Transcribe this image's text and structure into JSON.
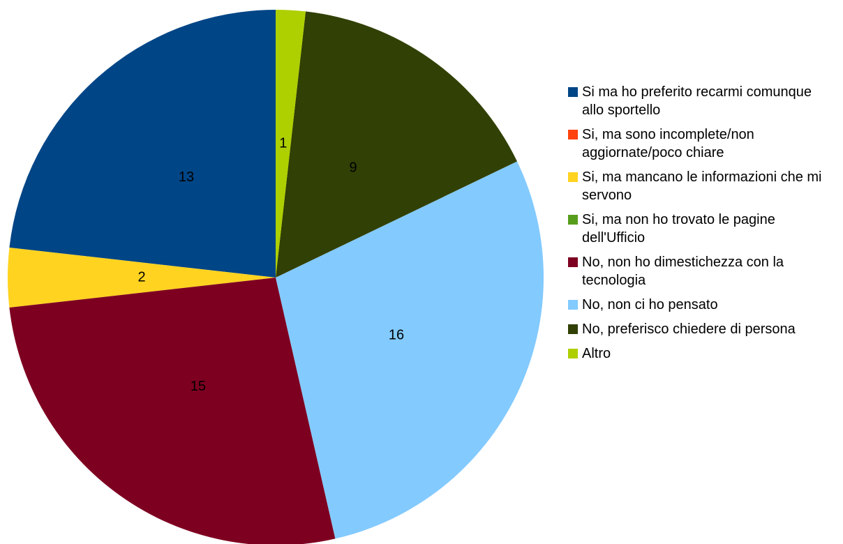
{
  "chart_data": {
    "type": "pie",
    "categories": [
      "Si ma ho preferito recarmi comunque allo sportello",
      "Si, ma sono incomplete/non aggiornate/poco chiare",
      "Si, ma mancano le informazioni che mi servono",
      "Si, ma non ho trovato le pagine dell'Ufficio",
      "No, non ho dimestichezza con la tecnologia",
      "No, non ci ho pensato",
      "No, preferisco chiedere di persona",
      "Altro"
    ],
    "values": [
      13,
      0,
      2,
      0,
      15,
      16,
      9,
      1
    ],
    "colors": [
      "#004586",
      "#ff420e",
      "#ffd320",
      "#579d1c",
      "#7e0021",
      "#83caff",
      "#314004",
      "#aecf00"
    ],
    "legend": "right"
  }
}
